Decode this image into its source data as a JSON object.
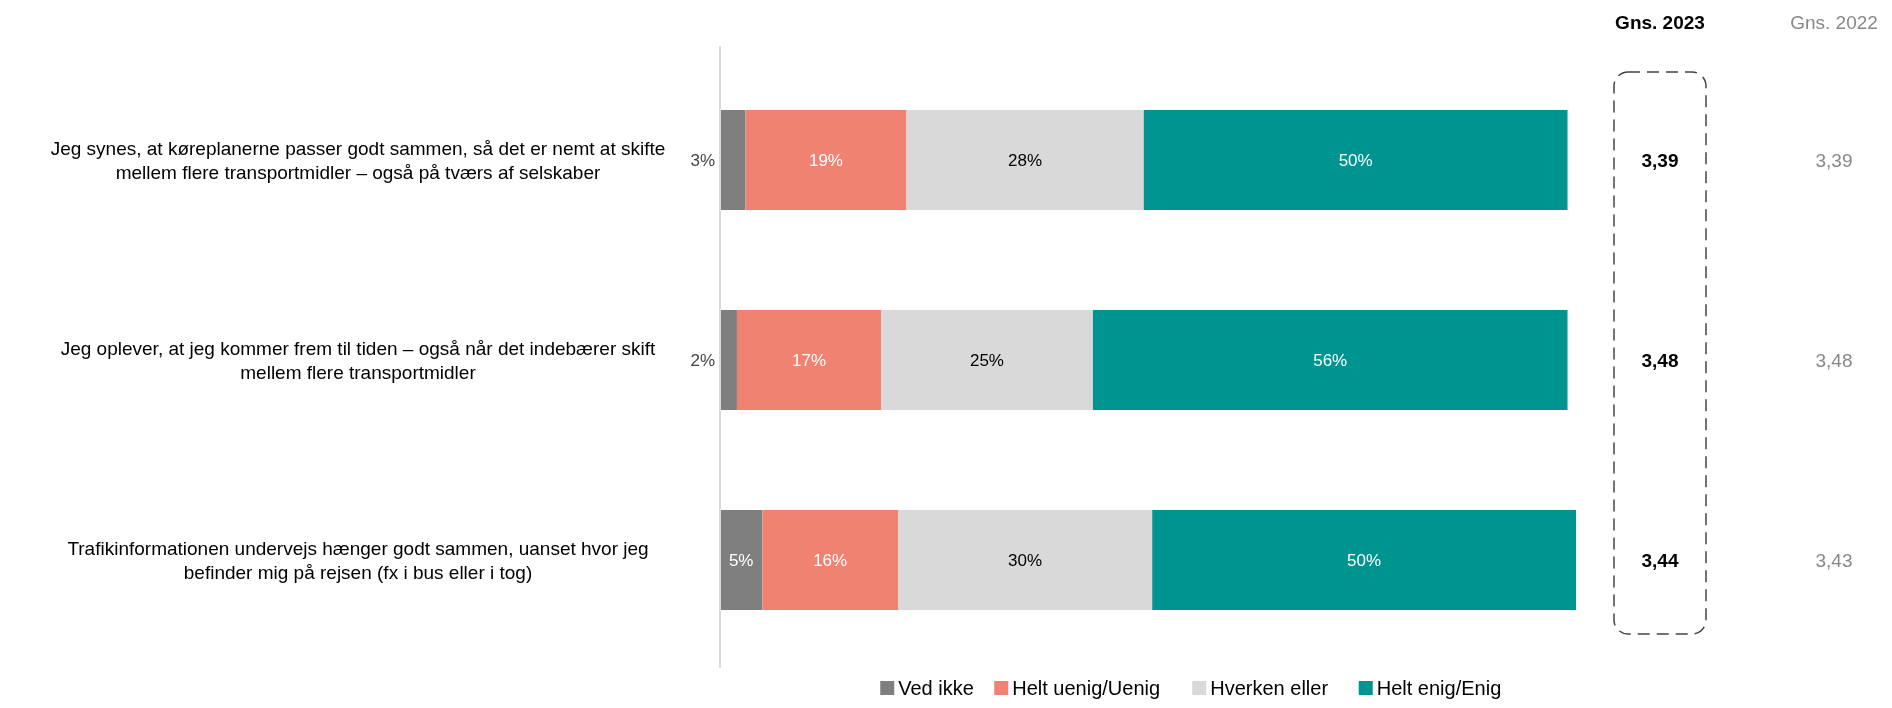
{
  "chart_data": {
    "type": "bar",
    "orientation": "horizontal",
    "stacked": true,
    "categories": [
      "Jeg synes, at køreplanerne passer godt sammen, så det er nemt at skifte mellem flere transportmidler – også på tværs af selskaber",
      "Jeg oplever, at jeg kommer frem til tiden – også når det indebærer skift mellem flere transportmidler",
      "Trafikinformationen undervejs hænger godt sammen, uanset hvor jeg befinder mig på rejsen (fx i bus eller i tog)"
    ],
    "series": [
      {
        "name": "Ved ikke",
        "color": "#7f7f7f",
        "values": [
          3,
          2,
          5
        ],
        "value_labels": [
          "3%",
          "2%",
          "5%"
        ]
      },
      {
        "name": "Helt uenig/Uenig",
        "color": "#f08272",
        "values": [
          19,
          17,
          16
        ],
        "value_labels": [
          "19%",
          "17%",
          "16%"
        ]
      },
      {
        "name": "Hverken eller",
        "color": "#d9d9d9",
        "values": [
          28,
          25,
          30
        ],
        "value_labels": [
          "28%",
          "25%",
          "30%"
        ]
      },
      {
        "name": "Helt enig/Enig",
        "color": "#009490",
        "values": [
          50,
          56,
          50
        ],
        "value_labels": [
          "50%",
          "56%",
          "50%"
        ]
      }
    ],
    "legend": "bottom",
    "annotations": [
      "Gns. 2023",
      "3,39",
      "3,48",
      "3,44",
      "Gns. 2022",
      "3,39",
      "3,48",
      "3,43"
    ]
  }
}
